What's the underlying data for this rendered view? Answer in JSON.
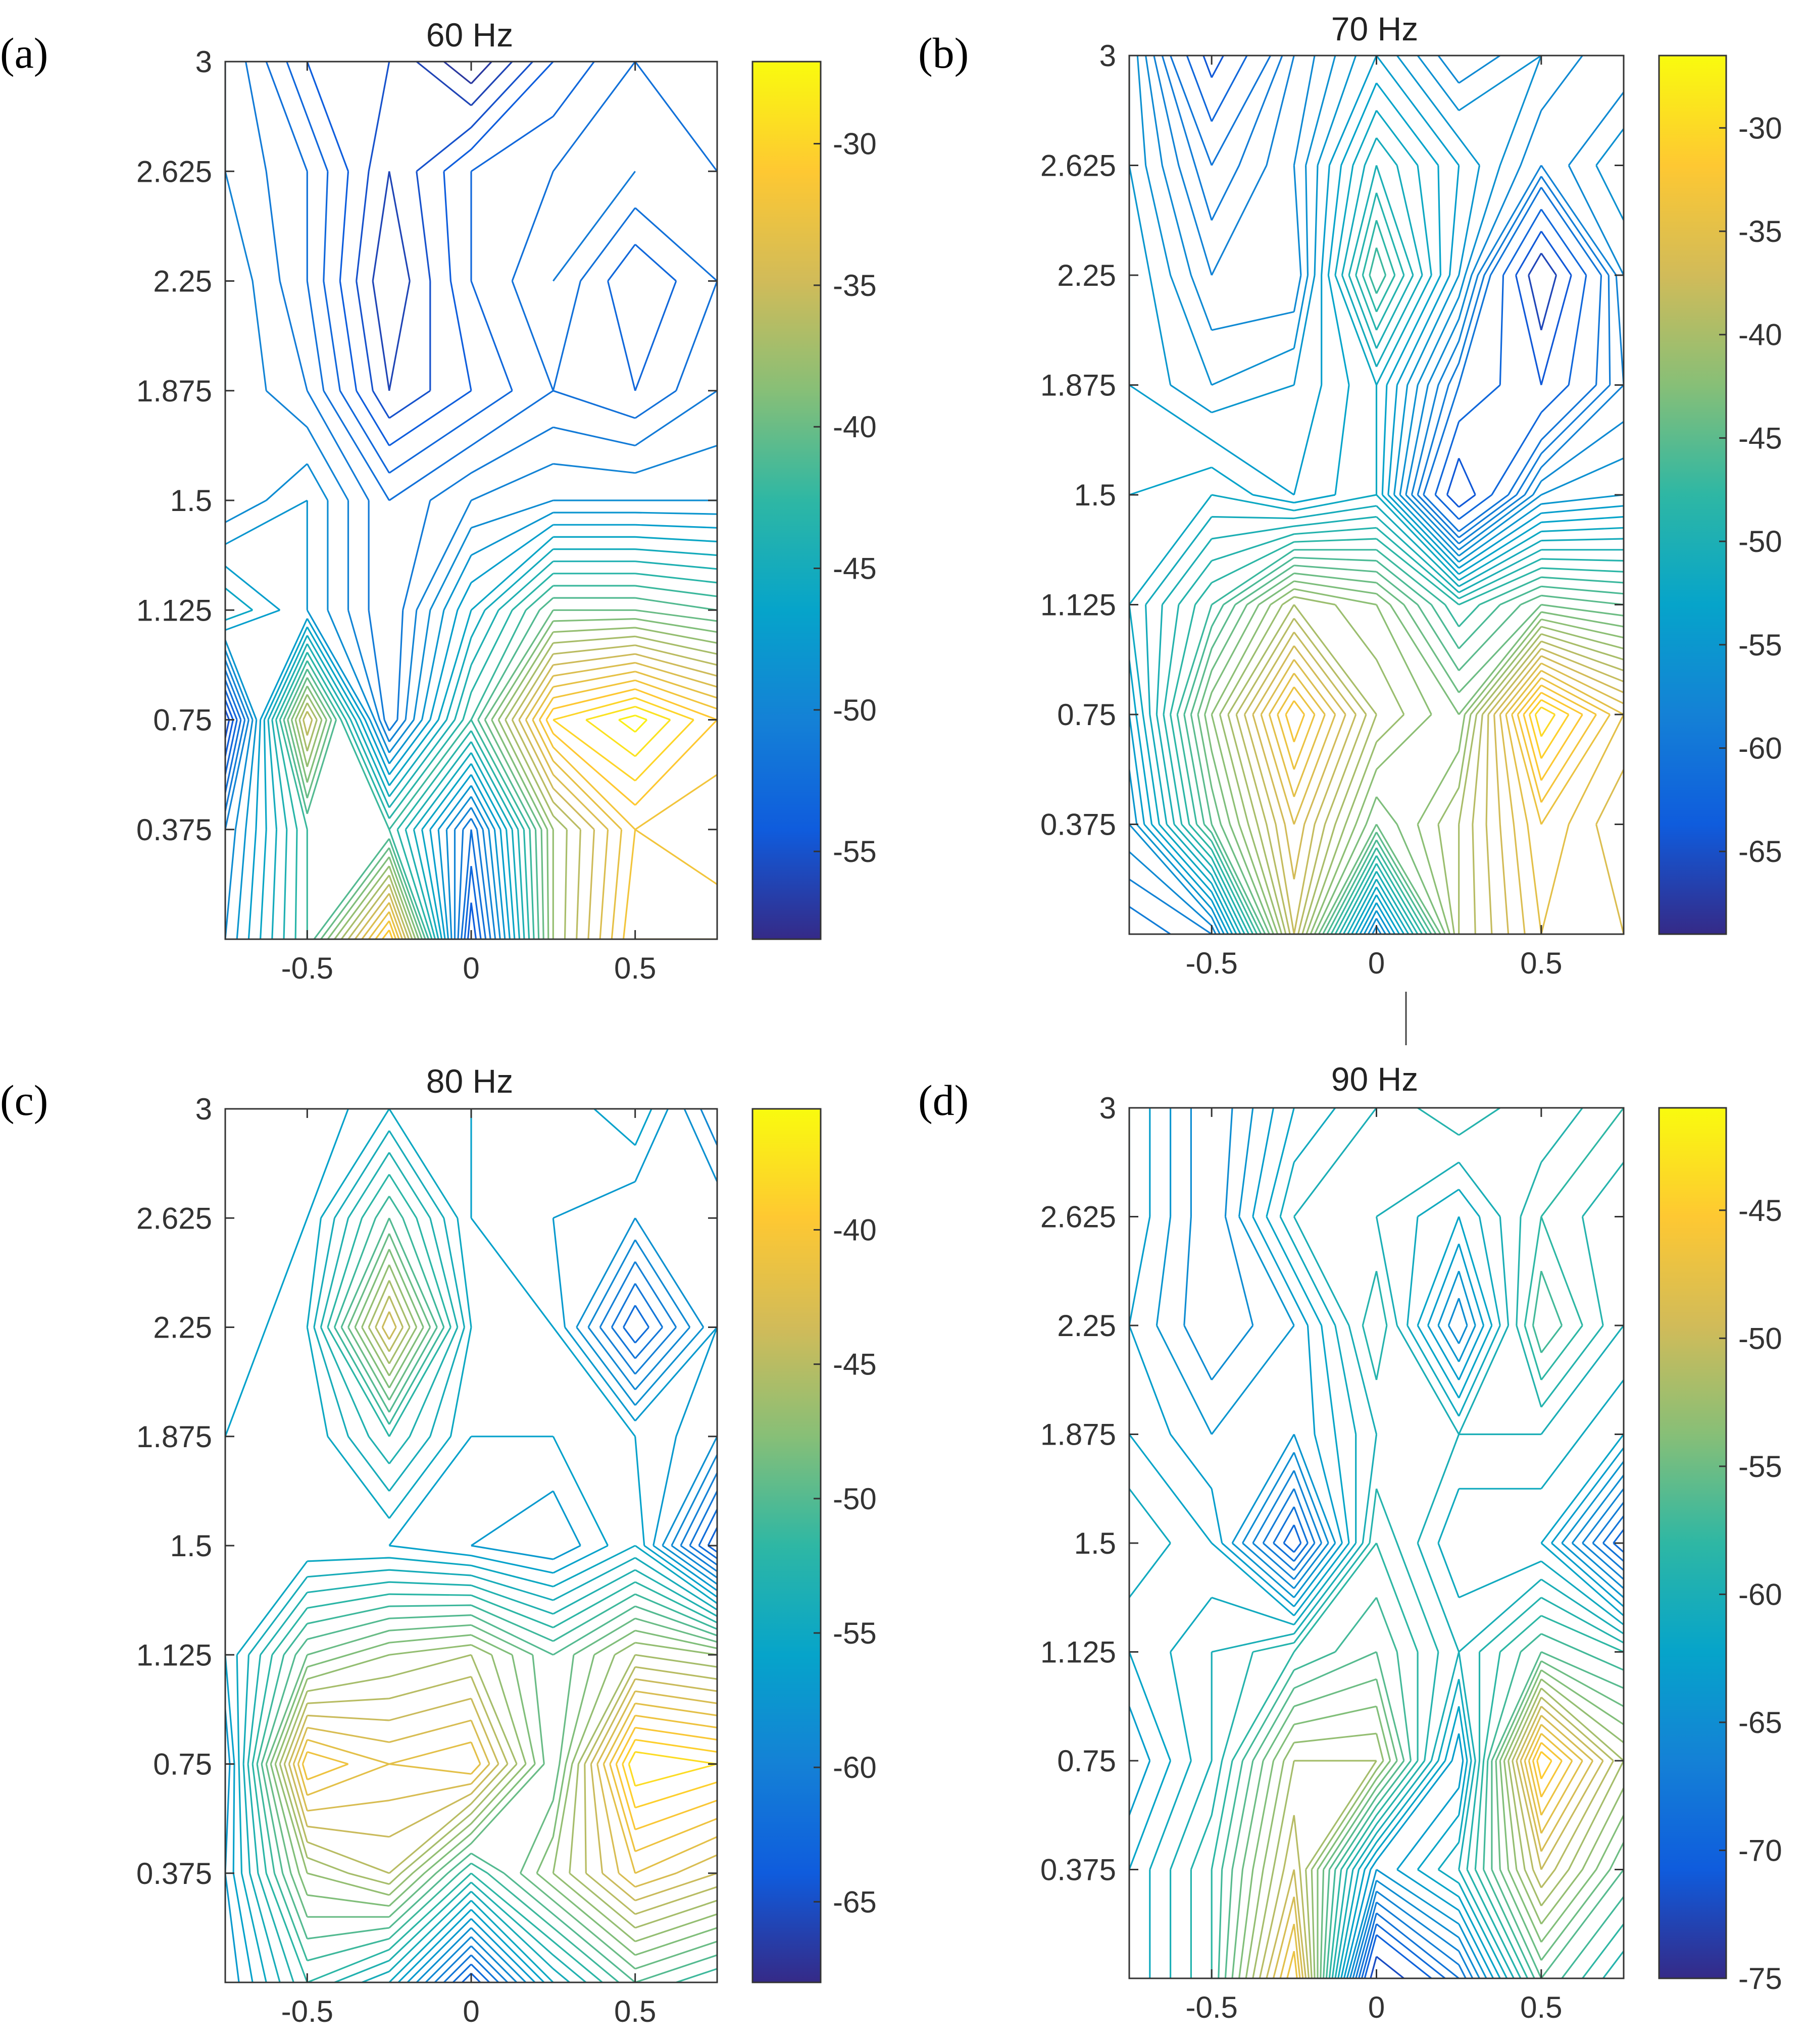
{
  "figure": {
    "connector_visible": true
  },
  "chart_data": [
    {
      "type": "contour",
      "panel_label": "(a)",
      "title": "60 Hz",
      "xlabel": "",
      "ylabel": "",
      "xlim": [
        -0.75,
        0.75
      ],
      "ylim": [
        0,
        3
      ],
      "x_ticks": [
        -0.5,
        0,
        0.5
      ],
      "x_tick_labels": [
        "-0.5",
        "0",
        "0.5"
      ],
      "y_ticks": [
        0.375,
        0.75,
        1.125,
        1.5,
        1.875,
        2.25,
        2.625,
        3
      ],
      "y_tick_labels": [
        "0.375",
        "0.75",
        "1.125",
        "1.5",
        "1.875",
        "2.25",
        "2.625",
        "3"
      ],
      "colorbar": {
        "range": [
          -58.1,
          -27.1
        ],
        "ticks": [
          -30,
          -35,
          -40,
          -45,
          -50,
          -55
        ],
        "tick_labels": [
          "-30",
          "-35",
          "-40",
          "-45",
          "-50",
          "-55"
        ],
        "colormap": "parula"
      },
      "x": [
        -0.75,
        -0.5,
        -0.25,
        0,
        0.25,
        0.5,
        0.75
      ],
      "y": [
        0,
        0.375,
        0.75,
        1.125,
        1.5,
        1.875,
        2.25,
        2.625,
        3
      ],
      "z": [
        [
          -49,
          -42,
          -30,
          -55,
          -38,
          -31,
          -31
        ],
        [
          -50,
          -42,
          -42,
          -52,
          -38,
          -32,
          -33
        ],
        [
          -56,
          -35,
          -52,
          -42,
          -30,
          -27.5,
          -31
        ],
        [
          -45,
          -48,
          -52,
          -46,
          -40,
          -40,
          -41
        ],
        [
          -50,
          -48,
          -52,
          -50,
          -49,
          -49,
          -49
        ],
        [
          -49,
          -51,
          -56,
          -54,
          -52,
          -53,
          -51
        ],
        [
          -49,
          -52,
          -57,
          -53,
          -51,
          -54,
          -52
        ],
        [
          -50,
          -52,
          -56,
          -53,
          -52,
          -51,
          -52
        ],
        [
          -50,
          -54,
          -55,
          -58,
          -54,
          -52,
          -53
        ]
      ],
      "levels": [
        -58,
        -57,
        -56,
        -55,
        -54,
        -53,
        -52,
        -51,
        -50,
        -49,
        -48,
        -47,
        -46,
        -45,
        -44,
        -43,
        -42,
        -41,
        -40,
        -39,
        -38,
        -37,
        -36,
        -35,
        -34,
        -33,
        -32,
        -31,
        -30,
        -29,
        -28
      ]
    },
    {
      "type": "contour",
      "panel_label": "(b)",
      "title": "70 Hz",
      "xlabel": "",
      "ylabel": "",
      "xlim": [
        -0.75,
        0.75
      ],
      "ylim": [
        0,
        3
      ],
      "x_ticks": [
        -0.5,
        0,
        0.5
      ],
      "x_tick_labels": [
        "-0.5",
        "0",
        "0.5"
      ],
      "y_ticks": [
        0.375,
        0.75,
        1.125,
        1.5,
        1.875,
        2.25,
        2.625,
        3
      ],
      "y_tick_labels": [
        "0.375",
        "0.75",
        "1.125",
        "1.5",
        "1.875",
        "2.25",
        "2.625",
        "3"
      ],
      "colorbar": {
        "range": [
          -69,
          -26.5
        ],
        "ticks": [
          -30,
          -35,
          -40,
          -45,
          -50,
          -55,
          -60,
          -65
        ],
        "tick_labels": [
          "-30",
          "-35",
          "-40",
          "-45",
          "-50",
          "-55",
          "-60",
          "-65"
        ],
        "colormap": "parula"
      },
      "x": [
        -0.75,
        -0.5,
        -0.25,
        0,
        0.25,
        0.5,
        0.75
      ],
      "y": [
        0,
        0.375,
        0.75,
        1.125,
        1.5,
        1.875,
        2.25,
        2.625,
        3
      ],
      "z": [
        [
          -60,
          -58,
          -38,
          -58,
          -40,
          -35,
          -36
        ],
        [
          -56,
          -45,
          -36,
          -44,
          -40,
          -34,
          -37
        ],
        [
          -54,
          -42,
          -32,
          -40,
          -43,
          -29,
          -35
        ],
        [
          -52,
          -47,
          -40,
          -42,
          -48,
          -44,
          -45
        ],
        [
          -53,
          -52,
          -54,
          -52,
          -66,
          -56,
          -55
        ],
        [
          -54,
          -56,
          -55,
          -52,
          -60,
          -64,
          -58
        ],
        [
          -54,
          -58,
          -58,
          -46,
          -55,
          -68,
          -57
        ],
        [
          -55,
          -60,
          -57,
          -50,
          -54,
          -58,
          -55
        ],
        [
          -55,
          -65,
          -58,
          -54,
          -58,
          -56,
          -58
        ]
      ],
      "levels": [
        -68,
        -66,
        -64,
        -62,
        -60,
        -59,
        -58,
        -57,
        -56,
        -55,
        -54,
        -53,
        -52,
        -51,
        -50,
        -49,
        -48,
        -47,
        -46,
        -45,
        -44,
        -43,
        -42,
        -41,
        -40,
        -39,
        -38,
        -37,
        -36,
        -35,
        -34,
        -33,
        -32,
        -31,
        -30,
        -29
      ]
    },
    {
      "type": "contour",
      "panel_label": "(c)",
      "title": "80 Hz",
      "xlabel": "",
      "ylabel": "",
      "xlim": [
        -0.75,
        0.75
      ],
      "ylim": [
        0,
        3
      ],
      "x_ticks": [
        -0.5,
        0,
        0.5
      ],
      "x_tick_labels": [
        "-0.5",
        "0",
        "0.5"
      ],
      "y_ticks": [
        0.375,
        0.75,
        1.125,
        1.5,
        1.875,
        2.25,
        2.625,
        3
      ],
      "y_tick_labels": [
        "0.375",
        "0.75",
        "1.125",
        "1.5",
        "1.875",
        "2.25",
        "2.625",
        "3"
      ],
      "colorbar": {
        "range": [
          -68,
          -35.5
        ],
        "ticks": [
          -40,
          -45,
          -50,
          -55,
          -60,
          -65
        ],
        "tick_labels": [
          "-40",
          "-45",
          "-50",
          "-55",
          "-60",
          "-65"
        ],
        "colormap": "parula"
      },
      "x": [
        -0.75,
        -0.5,
        -0.25,
        0,
        0.25,
        0.5,
        0.75
      ],
      "y": [
        0,
        0.375,
        0.75,
        1.125,
        1.5,
        1.875,
        2.25,
        2.625,
        3
      ],
      "z": [
        [
          -58,
          -52,
          -55,
          -64,
          -55,
          -50,
          -52
        ],
        [
          -57,
          -47,
          -45,
          -52,
          -47,
          -42,
          -44
        ],
        [
          -58,
          -40,
          -42,
          -41,
          -50,
          -37,
          -38
        ],
        [
          -56,
          -49,
          -47,
          -46,
          -50,
          -46,
          -47
        ],
        [
          -56,
          -56,
          -56,
          -57,
          -58,
          -55,
          -64
        ],
        [
          -56,
          -56,
          -52,
          -56,
          -56,
          -56,
          -58
        ],
        [
          -57,
          -55,
          -43,
          -55,
          -56,
          -63,
          -57
        ],
        [
          -57,
          -56,
          -50,
          -56,
          -57,
          -58,
          -57
        ],
        [
          -57,
          -57,
          -55,
          -56,
          -57,
          -55,
          -60
        ]
      ],
      "levels": [
        -67,
        -66,
        -65,
        -64,
        -63,
        -62,
        -61,
        -60,
        -59,
        -58,
        -57,
        -56,
        -55,
        -54,
        -53,
        -52,
        -51,
        -50,
        -49,
        -48,
        -47,
        -46,
        -45,
        -44,
        -43,
        -42,
        -41,
        -40,
        -39,
        -38,
        -37,
        -36
      ]
    },
    {
      "type": "contour",
      "panel_label": "(d)",
      "title": "90 Hz",
      "xlabel": "",
      "ylabel": "",
      "xlim": [
        -0.75,
        0.75
      ],
      "ylim": [
        0,
        3
      ],
      "x_ticks": [
        -0.5,
        0,
        0.5
      ],
      "x_tick_labels": [
        "-0.5",
        "0",
        "0.5"
      ],
      "y_ticks": [
        0.375,
        0.75,
        1.125,
        1.5,
        1.875,
        2.25,
        2.625,
        3
      ],
      "y_tick_labels": [
        "0.375",
        "0.75",
        "1.125",
        "1.5",
        "1.875",
        "2.25",
        "2.625",
        "3"
      ],
      "colorbar": {
        "range": [
          -75,
          -41
        ],
        "ticks": [
          -45,
          -50,
          -55,
          -60,
          -65,
          -70,
          -75
        ],
        "tick_labels": [
          "-45",
          "-50",
          "-55",
          "-60",
          "-65",
          "-70",
          "-75"
        ],
        "colormap": "parula"
      },
      "x": [
        -0.75,
        -0.5,
        -0.25,
        0,
        0.25,
        0.5,
        0.75
      ],
      "y": [
        0,
        0.375,
        0.75,
        1.125,
        1.5,
        1.875,
        2.25,
        2.625,
        3
      ],
      "z": [
        [
          -62,
          -58,
          -46,
          -74,
          -68,
          -56,
          -60
        ],
        [
          -62,
          -58,
          -50,
          -64,
          -60,
          -50,
          -56
        ],
        [
          -64,
          -60,
          -52,
          -52,
          -64,
          -44,
          -52
        ],
        [
          -62,
          -60,
          -58,
          -56,
          -60,
          -56,
          -58
        ],
        [
          -60,
          -62,
          -70,
          -58,
          -62,
          -62,
          -70
        ],
        [
          -62,
          -64,
          -64,
          -60,
          -60,
          -60,
          -62
        ],
        [
          -63,
          -66,
          -64,
          -58,
          -66,
          -56,
          -60
        ],
        [
          -62,
          -66,
          -60,
          -60,
          -62,
          -58,
          -60
        ],
        [
          -62,
          -66,
          -62,
          -60,
          -58,
          -60,
          -58
        ]
      ],
      "levels": [
        -74,
        -72,
        -70,
        -69,
        -68,
        -67,
        -66,
        -65,
        -64,
        -63,
        -62,
        -61,
        -60,
        -59,
        -58,
        -57,
        -56,
        -55,
        -54,
        -53,
        -52,
        -51,
        -50,
        -49,
        -48,
        -47,
        -46,
        -45,
        -44,
        -43,
        -42
      ]
    }
  ]
}
